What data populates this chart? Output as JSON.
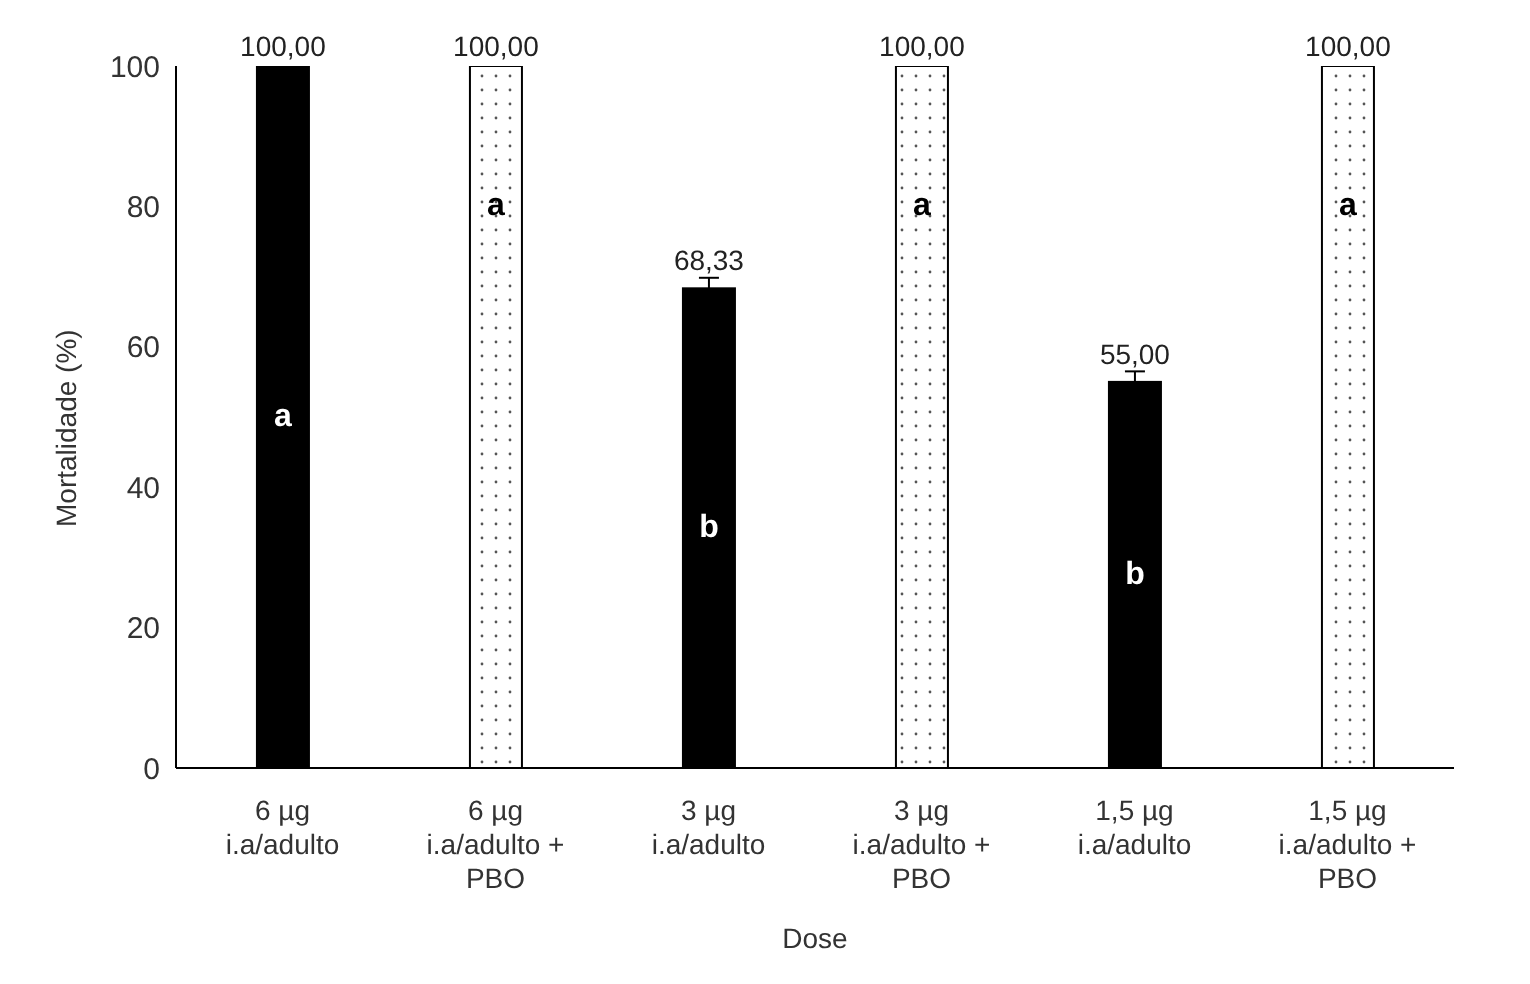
{
  "chart_data": {
    "type": "bar",
    "xlabel": "Dose",
    "ylabel": "Mortalidade (%)",
    "categories": [
      "6 µg\ni.a/adulto",
      "6 µg\ni.a/adulto +\nPBO",
      "3 µg\ni.a/adulto",
      "3 µg\ni.a/adulto +\nPBO",
      "1,5 µg\ni.a/adulto",
      "1,5 µg\ni.a/adulto +\nPBO"
    ],
    "values": [
      100,
      100,
      68.33,
      100,
      55,
      100
    ],
    "colors": [
      "#000000",
      "#ffffff",
      "#000000",
      "#ffffff",
      "#000000",
      "#ffffff"
    ],
    "errors": [
      null,
      null,
      1.5,
      null,
      1.5,
      null
    ],
    "value_labels": [
      "100,00",
      "100,00",
      "68,33",
      "100,00",
      "55,00",
      "100,00"
    ],
    "annotations": [
      "a",
      "a",
      "b",
      "a",
      "b",
      "a"
    ],
    "ylim": [
      0,
      100
    ],
    "yticks": [
      0,
      20,
      40,
      60,
      80,
      100
    ],
    "grid": false,
    "legend": false
  }
}
